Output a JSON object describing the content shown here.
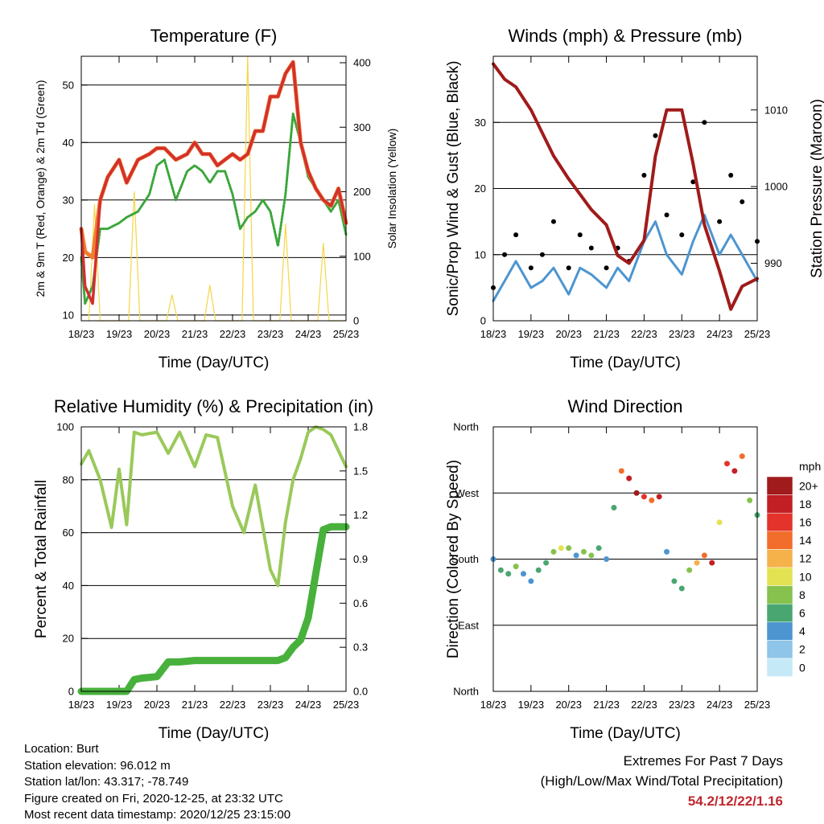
{
  "x_ticks": [
    "18/23",
    "19/23",
    "20/23",
    "21/23",
    "22/23",
    "23/23",
    "24/23",
    "25/23"
  ],
  "chart_data": [
    {
      "type": "line",
      "title": "Temperature (F)",
      "xlabel": "Time (Day/UTC)",
      "ylabel": "2m & 9m T (Red, Orange) & 2m Td (Green)",
      "ylabel_right": "Solar Insolation (Yellow)",
      "ylim": [
        9,
        55
      ],
      "yticks": [
        10,
        20,
        30,
        40,
        50
      ],
      "ylim_right": [
        0,
        410
      ],
      "yticks_right": [
        0,
        100,
        200,
        300,
        400
      ],
      "x": [
        18,
        18.1,
        18.3,
        18.5,
        18.7,
        19.0,
        19.2,
        19.5,
        19.8,
        20.0,
        20.2,
        20.5,
        20.8,
        21.0,
        21.2,
        21.4,
        21.6,
        21.8,
        22.0,
        22.2,
        22.4,
        22.6,
        22.8,
        23.0,
        23.2,
        23.4,
        23.6,
        23.8,
        24.0,
        24.2,
        24.4,
        24.6,
        24.8,
        25.0
      ],
      "series": [
        {
          "values": [
            25,
            15,
            12,
            30,
            34,
            37,
            33,
            37,
            38,
            39,
            39,
            37,
            38,
            40,
            38,
            38,
            36,
            37,
            38,
            37,
            38,
            42,
            42,
            48,
            48,
            52,
            54,
            40,
            35,
            32,
            30,
            29,
            32,
            26
          ]
        },
        {
          "values": [
            25,
            21,
            20,
            30,
            34,
            37,
            33,
            37,
            38,
            39,
            39,
            37,
            38,
            40,
            38,
            38,
            36,
            37,
            38,
            37,
            38,
            42,
            42,
            48,
            48,
            52,
            54,
            40,
            35,
            32,
            30,
            29,
            32,
            26
          ]
        },
        {
          "values": [
            20,
            12,
            15,
            25,
            25,
            26,
            27,
            28,
            31,
            36,
            37,
            30,
            35,
            36,
            35,
            33,
            35,
            35,
            31,
            25,
            27,
            28,
            30,
            28,
            22,
            31,
            45,
            40,
            34,
            32,
            30,
            28,
            30,
            24
          ]
        },
        {
          "values": [
            0,
            0,
            0,
            0,
            0,
            0,
            0,
            0,
            0,
            0,
            0,
            0,
            0,
            0,
            0,
            0,
            0,
            0,
            0,
            0,
            0,
            0,
            0,
            0,
            0,
            0,
            0,
            0,
            0,
            0,
            0,
            0,
            0,
            0
          ]
        }
      ],
      "colors": [
        "#d32f2f",
        "#f07f2d",
        "#3aa63a",
        "#f5d547"
      ],
      "insolation": {
        "x": [
          18.2,
          18.35,
          18.5,
          19.25,
          19.4,
          19.55,
          20.25,
          20.4,
          20.55,
          21.25,
          21.4,
          21.55,
          22.25,
          22.4,
          22.55,
          23.25,
          23.4,
          23.55,
          24.25,
          24.4,
          24.55,
          25.0
        ],
        "values": [
          0,
          180,
          0,
          0,
          200,
          0,
          0,
          40,
          0,
          0,
          55,
          0,
          0,
          410,
          0,
          0,
          150,
          0,
          0,
          120,
          0,
          0
        ]
      }
    },
    {
      "type": "scatter",
      "title": "Winds (mph) & Pressure (mb)",
      "xlabel": "Time (Day/UTC)",
      "ylabel": "Sonic/Prop Wind & Gust (Blue, Black)",
      "ylabel_right": "Station Pressure (Maroon)",
      "ylim": [
        0,
        40
      ],
      "yticks": [
        0,
        10,
        20,
        30
      ],
      "ylim_right": [
        982.5,
        1017
      ],
      "yticks_right": [
        990,
        1000,
        1010
      ],
      "x": [
        18,
        18.3,
        18.6,
        19.0,
        19.3,
        19.6,
        20.0,
        20.3,
        20.6,
        21.0,
        21.3,
        21.6,
        22.0,
        22.3,
        22.6,
        23.0,
        23.3,
        23.6,
        24.0,
        24.3,
        24.6,
        25.0
      ],
      "wind": [
        3,
        6,
        9,
        5,
        6,
        8,
        4,
        8,
        7,
        5,
        8,
        6,
        12,
        15,
        10,
        7,
        12,
        16,
        10,
        13,
        10,
        6
      ],
      "gust": [
        5,
        10,
        13,
        8,
        10,
        15,
        8,
        13,
        11,
        8,
        11,
        9,
        22,
        28,
        16,
        13,
        21,
        30,
        15,
        22,
        18,
        12
      ],
      "pressure": [
        1016,
        1014,
        1013,
        1010,
        1007,
        1004,
        1001,
        999,
        997,
        995,
        991,
        990,
        993,
        1004,
        1010,
        1010,
        1003,
        995,
        989,
        984,
        987,
        988
      ],
      "colors": {
        "wind": "#4d95d1",
        "gust": "#000000",
        "pressure": "#a01b1b"
      }
    },
    {
      "type": "line",
      "title": "Relative Humidity (%) & Precipitation (in)",
      "xlabel": "Time (Day/UTC)",
      "ylabel": "Percent & Total Rainfall",
      "ylim": [
        0,
        100
      ],
      "yticks": [
        0,
        20,
        40,
        60,
        80,
        100
      ],
      "ylim_right": [
        0,
        1.8
      ],
      "yticks_right": [
        "0.0",
        "0.3",
        "0.6",
        "0.9",
        "1.2",
        "1.5",
        "1.8"
      ],
      "x": [
        18,
        18.2,
        18.5,
        18.8,
        19.0,
        19.2,
        19.4,
        19.6,
        20.0,
        20.3,
        20.6,
        21.0,
        21.3,
        21.6,
        22.0,
        22.3,
        22.6,
        23.0,
        23.2,
        23.4,
        23.6,
        23.8,
        24.0,
        24.2,
        24.4,
        24.6,
        25.0
      ],
      "series": [
        {
          "name": "Relative Humidity",
          "values": [
            86,
            91,
            80,
            62,
            84,
            63,
            98,
            97,
            98,
            90,
            98,
            85,
            97,
            96,
            70,
            60,
            78,
            46,
            40,
            64,
            80,
            88,
            98,
            100,
            99,
            97,
            85
          ]
        },
        {
          "name": "Total Rainfall (in)",
          "values": [
            0,
            0,
            0,
            0,
            0,
            0,
            0.08,
            0.09,
            0.1,
            0.2,
            0.2,
            0.21,
            0.21,
            0.21,
            0.21,
            0.21,
            0.21,
            0.21,
            0.21,
            0.23,
            0.3,
            0.35,
            0.5,
            0.8,
            1.1,
            1.12,
            1.12
          ]
        }
      ],
      "colors": [
        "#9ac95a",
        "#47b13c"
      ]
    },
    {
      "type": "scatter",
      "title": "Wind Direction",
      "xlabel": "Time (Day/UTC)",
      "ylabel": "Direction (Colored By Speed)",
      "ylim": [
        0,
        360
      ],
      "yticks": [
        "North",
        "East",
        "South",
        "West",
        "North"
      ],
      "legend_title": "mph",
      "legend": [
        "0",
        "2",
        "4",
        "6",
        "8",
        "10",
        "12",
        "14",
        "16",
        "18",
        "20+"
      ],
      "legend_colors": [
        "#c6e9f7",
        "#8ec5e8",
        "#4d95d1",
        "#4aa670",
        "#86c24d",
        "#e3e252",
        "#f5b14a",
        "#f26d2b",
        "#e4332a",
        "#c21f25",
        "#a01b1b"
      ],
      "x": [
        18,
        18.2,
        18.4,
        18.6,
        18.8,
        19.0,
        19.2,
        19.4,
        19.6,
        19.8,
        20.0,
        20.2,
        20.4,
        20.6,
        20.8,
        21.0,
        21.2,
        21.4,
        21.6,
        21.8,
        22.0,
        22.2,
        22.4,
        22.6,
        22.8,
        23.0,
        23.2,
        23.4,
        23.6,
        23.8,
        24.0,
        24.2,
        24.4,
        24.6,
        24.8,
        25.0
      ],
      "direction": [
        180,
        165,
        160,
        170,
        160,
        150,
        165,
        175,
        190,
        195,
        195,
        185,
        190,
        185,
        195,
        180,
        250,
        300,
        290,
        270,
        265,
        260,
        265,
        190,
        150,
        140,
        165,
        175,
        185,
        175,
        230,
        310,
        300,
        320,
        260,
        240
      ],
      "speed": [
        4,
        6,
        5,
        7,
        4,
        3,
        5,
        6,
        8,
        9,
        8,
        4,
        7,
        8,
        5,
        4,
        6,
        14,
        18,
        20,
        16,
        14,
        18,
        4,
        5,
        6,
        8,
        12,
        14,
        18,
        10,
        16,
        18,
        14,
        8,
        6
      ]
    }
  ],
  "footer": {
    "location": "Location: Burt",
    "elevation": "Station elevation: 96.012 m",
    "latlon": "Station lat/lon: 43.317; -78.749",
    "created": "Figure created on Fri, 2020-12-25, at 23:32 UTC",
    "recent": "Most recent data timestamp: 2020/12/25 23:15:00",
    "extremes_title": "Extremes For Past 7 Days",
    "extremes_sub": "(High/Low/Max Wind/Total Precipitation)",
    "extremes_values": "54.2/12/22/1.16"
  }
}
